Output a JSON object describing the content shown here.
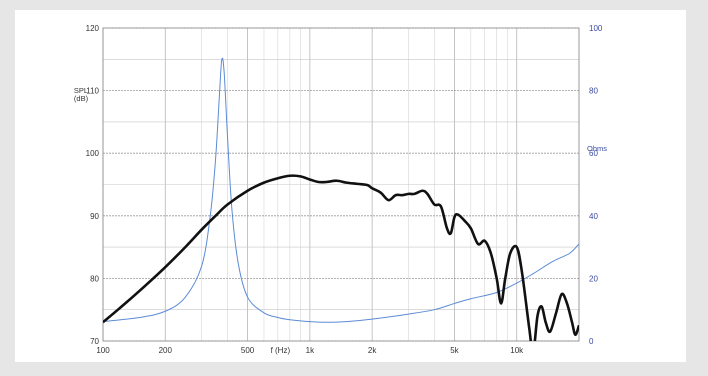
{
  "chart_data": {
    "type": "line",
    "x_scale": "log",
    "xlim": [
      100,
      20000
    ],
    "ylim_left": [
      70,
      120
    ],
    "ylim_right": [
      0,
      100
    ],
    "grid": true,
    "y_left_label_line1": "SPL",
    "y_left_label_line2": "(dB)",
    "y_right_label": "Ohms",
    "x_axis_label": "f (Hz)",
    "x_ticks": [
      {
        "value": 100,
        "label": "100"
      },
      {
        "value": 200,
        "label": "200"
      },
      {
        "value": 500,
        "label": "500"
      },
      {
        "value": 1000,
        "label": "1k"
      },
      {
        "value": 2000,
        "label": "2k"
      },
      {
        "value": 5000,
        "label": "5k"
      },
      {
        "value": 10000,
        "label": "10k"
      }
    ],
    "y_left_ticks": [
      70,
      80,
      90,
      100,
      110,
      120
    ],
    "y_right_ticks": [
      0,
      20,
      40,
      60,
      80,
      100
    ],
    "series": [
      {
        "axis": "left",
        "color": "#111111",
        "points": [
          [
            100,
            73.0
          ],
          [
            120,
            75.2
          ],
          [
            150,
            78.0
          ],
          [
            200,
            81.8
          ],
          [
            250,
            85.0
          ],
          [
            300,
            87.8
          ],
          [
            350,
            90.0
          ],
          [
            400,
            91.8
          ],
          [
            500,
            94.0
          ],
          [
            600,
            95.3
          ],
          [
            700,
            96.0
          ],
          [
            800,
            96.4
          ],
          [
            900,
            96.3
          ],
          [
            1000,
            95.8
          ],
          [
            1100,
            95.4
          ],
          [
            1200,
            95.4
          ],
          [
            1350,
            95.6
          ],
          [
            1500,
            95.3
          ],
          [
            1700,
            95.1
          ],
          [
            1900,
            94.9
          ],
          [
            2000,
            94.4
          ],
          [
            2200,
            93.7
          ],
          [
            2400,
            92.5
          ],
          [
            2600,
            93.3
          ],
          [
            2800,
            93.3
          ],
          [
            3000,
            93.5
          ],
          [
            3200,
            93.5
          ],
          [
            3500,
            94.0
          ],
          [
            3700,
            93.5
          ],
          [
            4000,
            91.8
          ],
          [
            4300,
            91.5
          ],
          [
            4600,
            88.0
          ],
          [
            4800,
            87.2
          ],
          [
            5000,
            89.8
          ],
          [
            5200,
            90.2
          ],
          [
            5600,
            89.2
          ],
          [
            6000,
            88.0
          ],
          [
            6500,
            85.5
          ],
          [
            7000,
            86.0
          ],
          [
            7500,
            84.0
          ],
          [
            8000,
            80.0
          ],
          [
            8400,
            76.0
          ],
          [
            8800,
            80.0
          ],
          [
            9300,
            84.0
          ],
          [
            10000,
            85.0
          ],
          [
            10600,
            81.0
          ],
          [
            11500,
            72.0
          ],
          [
            12000,
            68.0
          ],
          [
            12600,
            74.0
          ],
          [
            13200,
            75.5
          ],
          [
            13800,
            73.0
          ],
          [
            14500,
            71.5
          ],
          [
            15500,
            74.5
          ],
          [
            16500,
            77.5
          ],
          [
            17500,
            76.0
          ],
          [
            18500,
            73.0
          ],
          [
            19200,
            71.0
          ],
          [
            20000,
            72.5
          ]
        ]
      },
      {
        "axis": "right",
        "color": "#5b8bd6",
        "points": [
          [
            100,
            6.2
          ],
          [
            150,
            7.5
          ],
          [
            200,
            9.5
          ],
          [
            250,
            14.0
          ],
          [
            300,
            24.0
          ],
          [
            330,
            40.0
          ],
          [
            350,
            58.0
          ],
          [
            365,
            78.0
          ],
          [
            375,
            89.8
          ],
          [
            385,
            86.0
          ],
          [
            400,
            65.0
          ],
          [
            420,
            42.0
          ],
          [
            450,
            25.0
          ],
          [
            500,
            14.0
          ],
          [
            600,
            9.0
          ],
          [
            700,
            7.5
          ],
          [
            800,
            6.8
          ],
          [
            1000,
            6.2
          ],
          [
            1200,
            6.0
          ],
          [
            1500,
            6.2
          ],
          [
            2000,
            7.0
          ],
          [
            3000,
            8.6
          ],
          [
            4000,
            10.0
          ],
          [
            5000,
            12.0
          ],
          [
            6000,
            13.5
          ],
          [
            8000,
            15.5
          ],
          [
            10000,
            18.5
          ],
          [
            12000,
            21.5
          ],
          [
            15000,
            25.5
          ],
          [
            18000,
            28.0
          ],
          [
            20000,
            31.0
          ]
        ]
      }
    ]
  }
}
